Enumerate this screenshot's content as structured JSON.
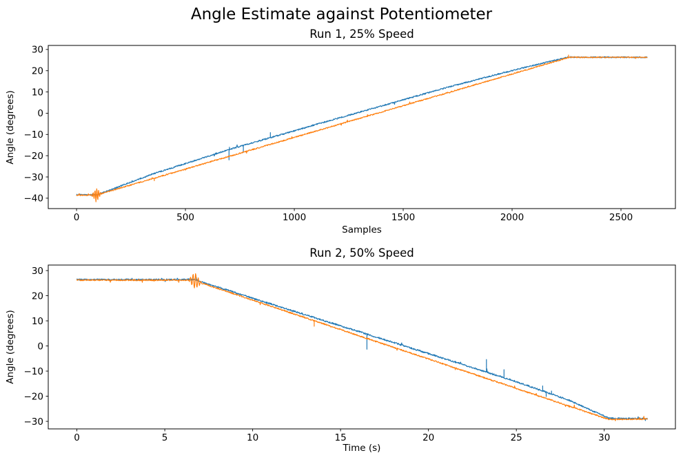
{
  "title": "Angle Estimate against Potentiometer",
  "background_color": "#ffffff",
  "chart_data": {
    "type": "line",
    "grid": false,
    "legend": null,
    "axis_color": "#000000",
    "plots": [
      {
        "title": "Run 1, 25% Speed",
        "xlabel": "Samples",
        "ylabel": "Angle (degrees)",
        "xlim": [
          -130,
          2750
        ],
        "ylim": [
          -44.9,
          31.9
        ],
        "xticks": [
          0,
          500,
          1000,
          1500,
          2000,
          2500
        ],
        "yticks": [
          -40,
          -30,
          -20,
          -10,
          0,
          10,
          20,
          30
        ],
        "series": [
          {
            "id": "angle-estimate",
            "color": "#1f77b4",
            "noise": 0.3,
            "points": [
              [
                0,
                -38.4
              ],
              [
                95,
                -38.4
              ],
              [
                350,
                -28.6
              ],
              [
                700,
                -17.1
              ],
              [
                1200,
                -2.4
              ],
              [
                1700,
                12.1
              ],
              [
                2000,
                20.1
              ],
              [
                2258,
                26.4
              ],
              [
                2620,
                26.3
              ]
            ],
            "spikes": [
              [
                700,
                -4.9
              ],
              [
                702,
                1.0
              ],
              [
                766,
                -3.3
              ],
              [
                890,
                2.4
              ]
            ]
          },
          {
            "id": "potentiometer",
            "color": "#ff7f0e",
            "noise": 0.26,
            "points": [
              [
                0,
                -38.6
              ],
              [
                88,
                -38.6
              ],
              [
                2256,
                26.1
              ],
              [
                2268,
                26.3
              ],
              [
                2620,
                26.3
              ]
            ],
            "spikes": [
              [
                357,
                -1.2
              ],
              [
                1336,
                0.7
              ],
              [
                2259,
                1.2
              ]
            ],
            "oscillation": {
              "x": 91,
              "amp": 3.3,
              "width": 26
            }
          }
        ]
      },
      {
        "title": "Run 2, 50% Speed",
        "xlabel": "Time (s)",
        "ylabel": "Angle (degrees)",
        "xlim": [
          -1.63,
          34.05
        ],
        "ylim": [
          -33.0,
          32.2
        ],
        "xticks": [
          0,
          5,
          10,
          15,
          20,
          25,
          30
        ],
        "yticks": [
          -30,
          -20,
          -10,
          0,
          10,
          20,
          30
        ],
        "series": [
          {
            "id": "angle-estimate",
            "color": "#1f77b4",
            "noise": 0.3,
            "points": [
              [
                0,
                26.4
              ],
              [
                6.7,
                26.4
              ],
              [
                10,
                19.0
              ],
              [
                15,
                8.0
              ],
              [
                20,
                -3.0
              ],
              [
                25,
                -14.2
              ],
              [
                28,
                -21.6
              ],
              [
                30.3,
                -28.8
              ],
              [
                32.45,
                -28.9
              ]
            ],
            "spikes": [
              [
                16.5,
                -6.0
              ],
              [
                23.3,
                5.0
              ],
              [
                24.3,
                3.2
              ],
              [
                26.5,
                2.0
              ],
              [
                26.7,
                -1.7
              ],
              [
                27.0,
                1.2
              ]
            ]
          },
          {
            "id": "potentiometer",
            "color": "#ff7f0e",
            "noise": 0.26,
            "points": [
              [
                0,
                26.2
              ],
              [
                6.6,
                26.2
              ],
              [
                30.25,
                -29.2
              ],
              [
                32.45,
                -29.1
              ]
            ],
            "spikes": [
              [
                13.5,
                -2.2
              ]
            ],
            "oscillation": {
              "x": 6.72,
              "amp": 3.3,
              "width": 0.45
            }
          }
        ]
      }
    ]
  }
}
